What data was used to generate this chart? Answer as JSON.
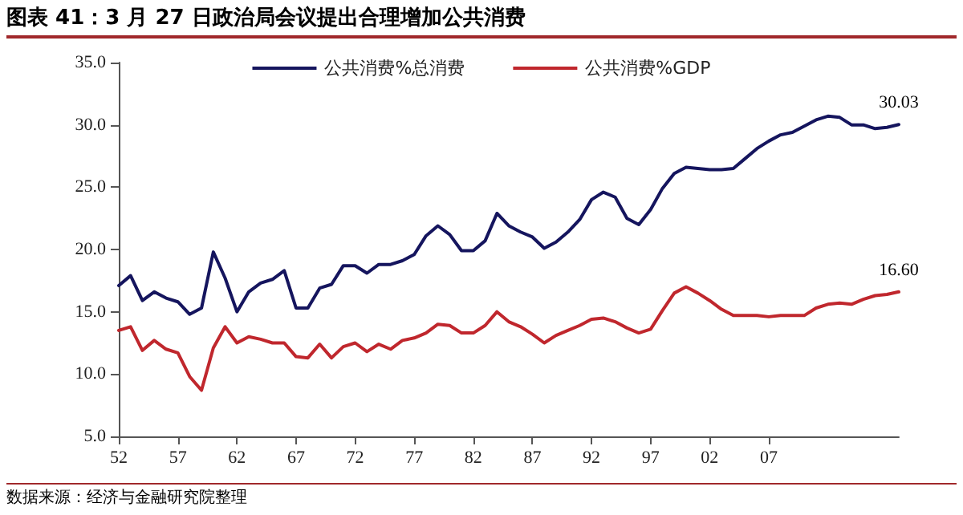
{
  "chart_data": {
    "type": "line",
    "title": "图表 41：3 月 27 日政治局会议提出合理增加公共消费",
    "annotations": [
      "数据来源：经济与金融研究院整理"
    ],
    "x": [
      1952,
      1953,
      1954,
      1955,
      1956,
      1957,
      1958,
      1959,
      1960,
      1961,
      1962,
      1963,
      1964,
      1965,
      1966,
      1967,
      1968,
      1969,
      1970,
      1971,
      1972,
      1973,
      1974,
      1975,
      1976,
      1977,
      1978,
      1979,
      1980,
      1981,
      1982,
      1983,
      1984,
      1985,
      1986,
      1987,
      1988,
      1989,
      1990,
      1991,
      1992,
      1993,
      1994,
      1995,
      1996,
      1997,
      1998,
      1999,
      2000,
      2001,
      2002,
      2003,
      2004,
      2005,
      2006,
      2007,
      2008,
      2009,
      2010,
      2011,
      2012,
      2013,
      2014,
      2015,
      2016,
      2017,
      2018
    ],
    "series": [
      {
        "name": "公共消费%总消费",
        "color": "#15155e",
        "values": [
          17.1,
          17.9,
          15.9,
          16.6,
          16.1,
          15.8,
          14.8,
          15.3,
          19.8,
          17.7,
          15.0,
          16.6,
          17.3,
          17.6,
          18.3,
          15.3,
          15.3,
          16.9,
          17.2,
          18.7,
          18.7,
          18.1,
          18.8,
          18.8,
          19.1,
          19.6,
          21.1,
          21.9,
          21.2,
          19.9,
          19.9,
          20.7,
          22.9,
          21.9,
          21.4,
          21.0,
          20.1,
          20.6,
          21.4,
          22.4,
          24.0,
          24.6,
          24.2,
          22.5,
          22.0,
          23.2,
          24.9,
          26.1,
          26.6,
          26.5,
          26.4,
          26.4,
          26.5,
          27.3,
          28.1,
          28.7,
          29.2,
          29.4,
          29.9,
          30.4,
          30.7,
          30.6,
          30.0,
          30.0,
          29.7,
          29.8,
          30.03
        ],
        "value_labels": [
          null,
          null,
          null,
          null,
          null,
          null,
          null,
          null,
          null,
          null,
          null,
          null,
          null,
          null,
          null,
          null,
          null,
          null,
          null,
          null,
          null,
          null,
          null,
          null,
          null,
          null,
          null,
          null,
          null,
          null,
          null,
          null,
          null,
          null,
          null,
          null,
          null,
          null,
          null,
          null,
          null,
          null,
          null,
          null,
          null,
          null,
          null,
          null,
          null,
          null,
          null,
          null,
          null,
          null,
          null,
          null,
          null,
          null,
          null,
          null,
          null,
          null,
          null,
          null,
          null,
          null,
          "30.03"
        ]
      },
      {
        "name": "公共消费%GDP",
        "color": "#c0272d",
        "values": [
          13.5,
          13.8,
          11.9,
          12.7,
          12.0,
          11.7,
          9.8,
          8.7,
          12.1,
          13.8,
          12.5,
          13.0,
          12.8,
          12.5,
          12.5,
          11.4,
          11.3,
          12.4,
          11.3,
          12.2,
          12.5,
          11.8,
          12.4,
          12.0,
          12.7,
          12.9,
          13.3,
          14.0,
          13.9,
          13.3,
          13.3,
          13.9,
          15.0,
          14.2,
          13.8,
          13.2,
          12.5,
          13.1,
          13.5,
          13.9,
          14.4,
          14.5,
          14.2,
          13.7,
          13.3,
          13.6,
          15.1,
          16.5,
          17.0,
          16.5,
          15.9,
          15.2,
          14.7,
          14.7,
          14.7,
          14.6,
          14.7,
          14.7,
          14.7,
          15.3,
          15.6,
          15.7,
          15.6,
          16.0,
          16.3,
          16.4,
          16.6
        ],
        "value_labels": [
          null,
          null,
          null,
          null,
          null,
          null,
          null,
          null,
          null,
          null,
          null,
          null,
          null,
          null,
          null,
          null,
          null,
          null,
          null,
          null,
          null,
          null,
          null,
          null,
          null,
          null,
          null,
          null,
          null,
          null,
          null,
          null,
          null,
          null,
          null,
          null,
          null,
          null,
          null,
          null,
          null,
          null,
          null,
          null,
          null,
          null,
          null,
          null,
          null,
          null,
          null,
          null,
          null,
          null,
          null,
          null,
          null,
          null,
          null,
          null,
          null,
          null,
          null,
          null,
          null,
          null,
          "16.60"
        ]
      }
    ],
    "xlim": [
      1952,
      2018
    ],
    "xticks": [
      {
        "value": 1952,
        "label": "52"
      },
      {
        "value": 1957,
        "label": "57"
      },
      {
        "value": 1962,
        "label": "62"
      },
      {
        "value": 1967,
        "label": "67"
      },
      {
        "value": 1972,
        "label": "72"
      },
      {
        "value": 1977,
        "label": "77"
      },
      {
        "value": 1982,
        "label": "82"
      },
      {
        "value": 1987,
        "label": "87"
      },
      {
        "value": 1992,
        "label": "92"
      },
      {
        "value": 1997,
        "label": "97"
      },
      {
        "value": 2002,
        "label": "02"
      },
      {
        "value": 2007,
        "label": "07"
      }
    ],
    "ylim": [
      5,
      35
    ],
    "yticks": [
      {
        "value": 5,
        "label": "5.0"
      },
      {
        "value": 10,
        "label": "10.0"
      },
      {
        "value": 15,
        "label": "15.0"
      },
      {
        "value": 20,
        "label": "20.0"
      },
      {
        "value": 25,
        "label": "25.0"
      },
      {
        "value": 30,
        "label": "30.0"
      },
      {
        "value": 35,
        "label": "35.0"
      }
    ],
    "legend": "top",
    "grid": false,
    "marker": "none",
    "line_style": "solid"
  }
}
